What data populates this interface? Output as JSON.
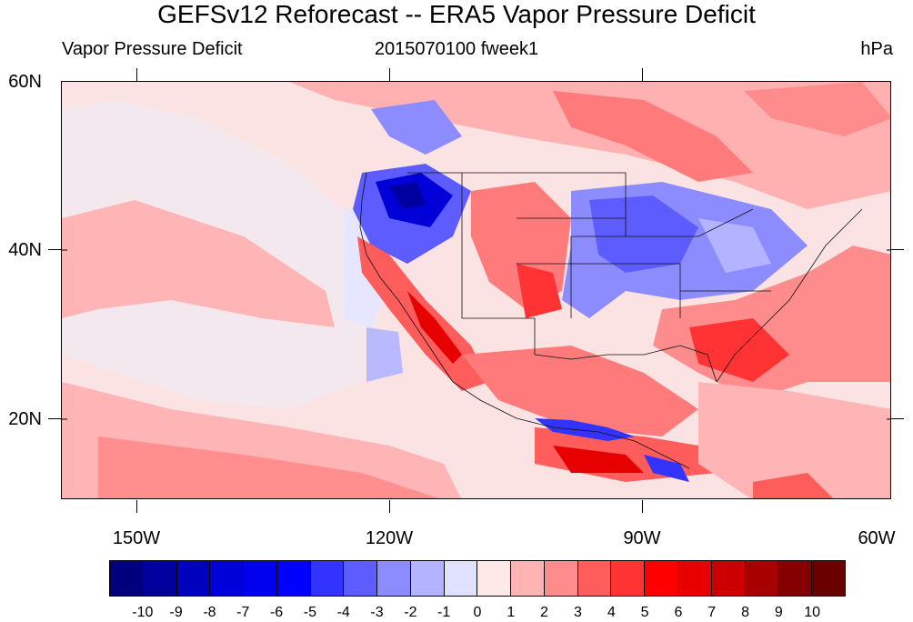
{
  "title": "GEFSv12 Reforecast -- ERA5 Vapor Pressure Deficit",
  "subtitle_left": "Vapor Pressure Deficit",
  "subtitle_center": "2015070100 fweek1",
  "subtitle_right": "hPa",
  "lat_labels": [
    "60N",
    "40N",
    "20N"
  ],
  "lon_labels": [
    "150W",
    "120W",
    "90W",
    "60W"
  ],
  "colorbar": {
    "labels": [
      "-10",
      "-9",
      "-8",
      "-7",
      "-6",
      "-5",
      "-4",
      "-3",
      "-2",
      "-1",
      "0",
      "1",
      "2",
      "3",
      "4",
      "5",
      "6",
      "7",
      "8",
      "9",
      "10"
    ],
    "colors": [
      "#00007f",
      "#00009f",
      "#0000bf",
      "#0000d9",
      "#0000ef",
      "#0000ff",
      "#3333ff",
      "#5c5cff",
      "#8c8cff",
      "#b3b3ff",
      "#e0e0ff",
      "#ffe8e8",
      "#ffb3b3",
      "#ff8c8c",
      "#ff5c5c",
      "#ff3333",
      "#ff0000",
      "#e60000",
      "#cc0000",
      "#a60000",
      "#850000",
      "#6a0000"
    ]
  }
}
